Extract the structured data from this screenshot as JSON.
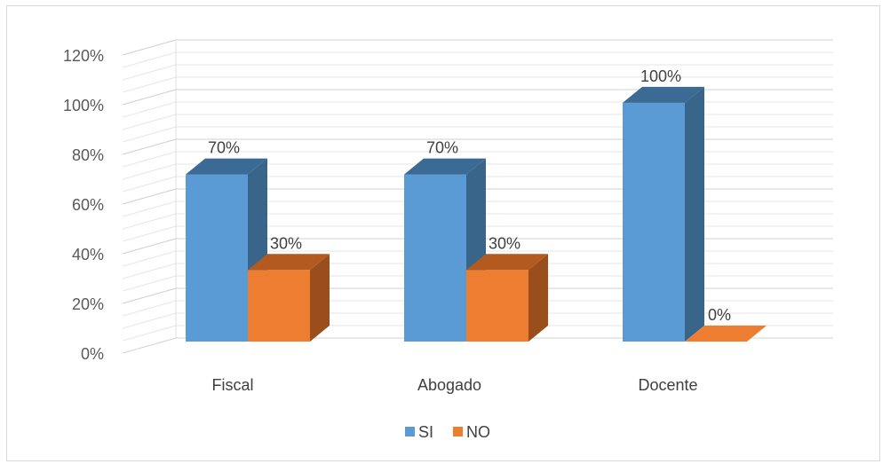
{
  "chart_data": {
    "type": "bar",
    "style": "3d-clustered-column",
    "categories": [
      "Fiscal",
      "Abogado",
      "Docente"
    ],
    "series": [
      {
        "name": "SI",
        "values": [
          70,
          70,
          100
        ],
        "labels": [
          "70%",
          "70%",
          "100%"
        ],
        "color": "#5B9BD5",
        "side_color": "#3A658B",
        "top_color": "#3B6A94"
      },
      {
        "name": "NO",
        "values": [
          30,
          30,
          0
        ],
        "labels": [
          "30%",
          "30%",
          "0%"
        ],
        "color": "#ED7D31",
        "side_color": "#9A4E1C",
        "top_color": "#B25A20"
      }
    ],
    "yticks": [
      "0%",
      "20%",
      "40%",
      "60%",
      "80%",
      "100%",
      "120%"
    ],
    "ylim": [
      0,
      120
    ],
    "ystep": 20,
    "minor_gridlines": true,
    "grid_color": "#d9d9d9",
    "legend_position": "bottom"
  }
}
